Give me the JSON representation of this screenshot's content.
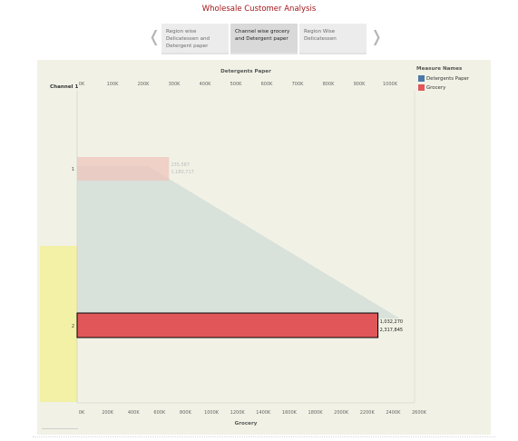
{
  "title": "Wholesale Customer Analysis",
  "nav": {
    "prev_icon": "chevron-left-icon",
    "next_icon": "chevron-right-icon",
    "tabs": [
      {
        "label": "Region wise Delicatessen and Detergent paper",
        "active": false
      },
      {
        "label": "Channel wise grocery and Detergent paper",
        "active": true
      },
      {
        "label": "Region Wise Delicatessen",
        "active": false
      }
    ]
  },
  "legend": {
    "title": "Measure Names",
    "items": [
      {
        "label": "Detergents Paper",
        "color": "#4e79a7"
      },
      {
        "label": "Grocery",
        "color": "#e15759"
      }
    ]
  },
  "chart_data": {
    "type": "bar",
    "orientation": "horizontal",
    "row_header": "Channel 1",
    "categories": [
      "1",
      "2"
    ],
    "top_axis": {
      "label": "Detergents Paper",
      "ticks": [
        "0K",
        "100K",
        "200K",
        "300K",
        "400K",
        "500K",
        "600K",
        "700K",
        "800K",
        "900K",
        "1000K"
      ],
      "range": [
        0,
        1080000
      ]
    },
    "bottom_axis": {
      "label": "Grocery",
      "ticks": [
        "0K",
        "200K",
        "400K",
        "600K",
        "800K",
        "1000K",
        "1200K",
        "1400K",
        "1600K",
        "1800K",
        "2000K",
        "2200K",
        "2400K",
        "2600K"
      ],
      "range": [
        0,
        2600000
      ]
    },
    "series": [
      {
        "name": "Detergents Paper",
        "values": [
          235587,
          1032270
        ],
        "labels": [
          "235,587",
          "1,032,270"
        ],
        "color": "#4e79a7"
      },
      {
        "name": "Grocery",
        "values": [
          1180717,
          2317845
        ],
        "labels": [
          "1,180,717",
          "2,317,845"
        ],
        "color": "#e15759"
      }
    ],
    "highlighted_category": "2",
    "grid": false
  }
}
